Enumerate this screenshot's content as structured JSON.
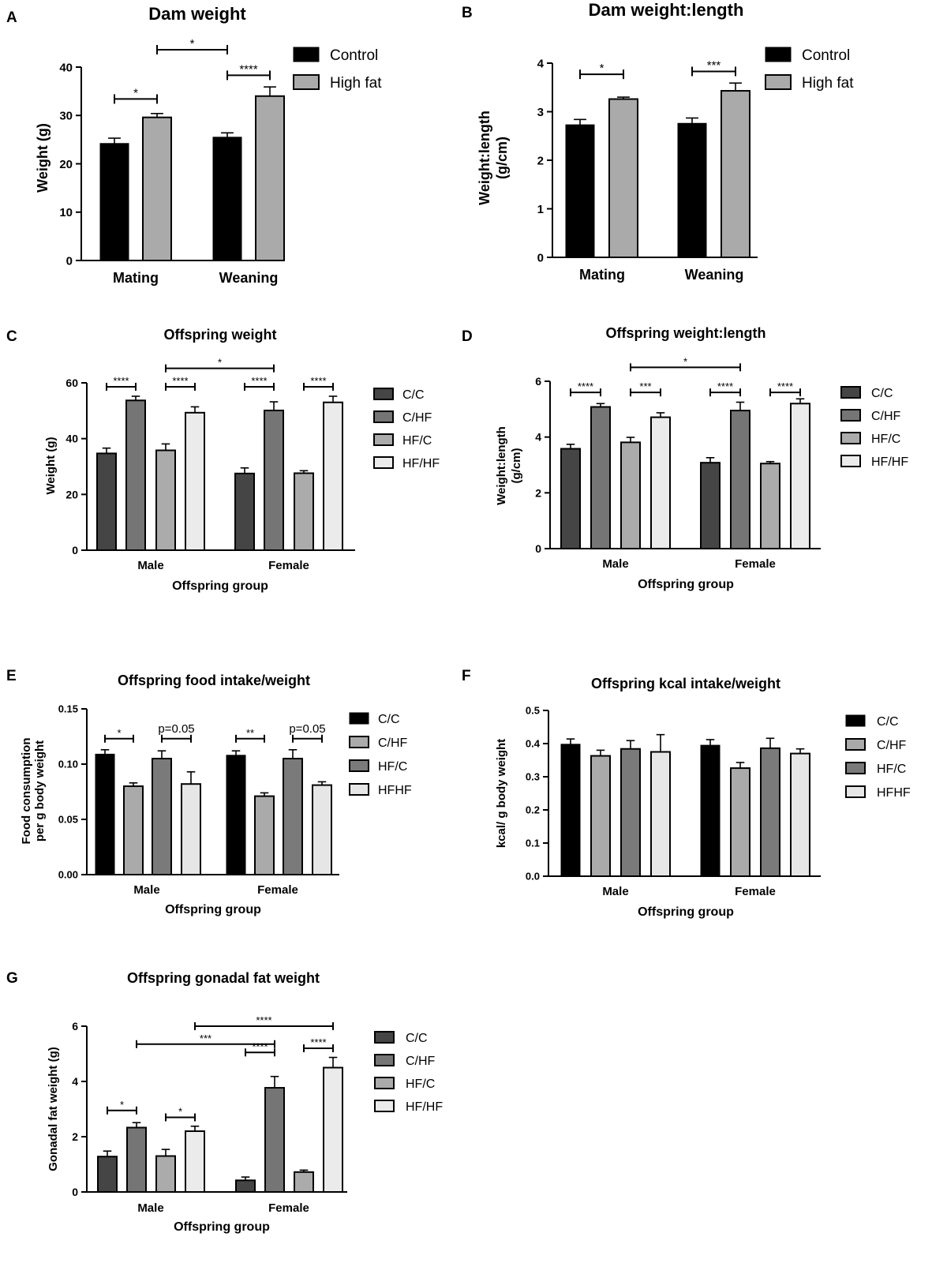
{
  "chart_data": [
    {
      "id": "A",
      "type": "bar",
      "panel_label": "A",
      "title": "Dam weight",
      "ylabel": "Weight (g)",
      "xlabel": "",
      "ylim": [
        0,
        40
      ],
      "yticks": [
        0,
        10,
        20,
        30,
        40
      ],
      "ytick_labels": [
        "0",
        "10",
        "20",
        "30",
        "40"
      ],
      "categories": [
        "Mating",
        "Weaning"
      ],
      "series": [
        {
          "name": "Control",
          "color": "#000000",
          "values": [
            24.2,
            25.5
          ],
          "errors": [
            1.1,
            0.9
          ]
        },
        {
          "name": "High fat",
          "color": "#aaaaaa",
          "values": [
            29.6,
            34.0
          ],
          "errors": [
            0.8,
            1.9
          ]
        }
      ],
      "legend": "top-right",
      "significance": [
        {
          "label": "*",
          "from": [
            0,
            0
          ],
          "to": [
            0,
            1
          ],
          "y": 33.4
        },
        {
          "label": "****",
          "from": [
            1,
            0
          ],
          "to": [
            1,
            1
          ],
          "y": 38.3
        },
        {
          "label": "*",
          "from": [
            0,
            1
          ],
          "to": [
            1,
            0
          ],
          "y": 43.6
        }
      ]
    },
    {
      "id": "B",
      "type": "bar",
      "panel_label": "B",
      "title": "Dam weight:length",
      "ylabel": "Weight:length (g/cm)",
      "xlabel": "",
      "ylim": [
        0,
        4
      ],
      "yticks": [
        0,
        1,
        2,
        3,
        4
      ],
      "ytick_labels": [
        "0",
        "1",
        "2",
        "3",
        "4"
      ],
      "categories": [
        "Mating",
        "Weaning"
      ],
      "series": [
        {
          "name": "Control",
          "color": "#000000",
          "values": [
            2.73,
            2.76
          ],
          "errors": [
            0.11,
            0.11
          ]
        },
        {
          "name": "High fat",
          "color": "#aaaaaa",
          "values": [
            3.26,
            3.43
          ],
          "errors": [
            0.04,
            0.16
          ]
        }
      ],
      "legend": "top-right",
      "significance": [
        {
          "label": "*",
          "from": [
            0,
            0
          ],
          "to": [
            0,
            1
          ],
          "y": 3.77
        },
        {
          "label": "***",
          "from": [
            1,
            0
          ],
          "to": [
            1,
            1
          ],
          "y": 3.83
        }
      ]
    },
    {
      "id": "C",
      "type": "bar",
      "panel_label": "C",
      "title": "Offspring weight",
      "ylabel": "Weight (g)",
      "xlabel": "Offspring group",
      "ylim": [
        0,
        60
      ],
      "yticks": [
        0,
        20,
        40,
        60
      ],
      "ytick_labels": [
        "0",
        "20",
        "40",
        "60"
      ],
      "categories": [
        "Male",
        "Female"
      ],
      "series": [
        {
          "name": "C/C",
          "color": "#454545",
          "values": [
            34.7,
            27.5
          ],
          "errors": [
            1.9,
            2.0
          ]
        },
        {
          "name": "C/HF",
          "color": "#757575",
          "values": [
            53.7,
            50.1
          ],
          "errors": [
            1.5,
            3.1
          ]
        },
        {
          "name": "HF/C",
          "color": "#ababab",
          "values": [
            35.8,
            27.6
          ],
          "errors": [
            2.3,
            0.9
          ]
        },
        {
          "name": "HF/HF",
          "color": "#ebebeb",
          "values": [
            49.3,
            53.0
          ],
          "errors": [
            2.1,
            2.2
          ]
        }
      ],
      "legend": "right",
      "significance": [
        {
          "label": "****",
          "from": [
            0,
            0
          ],
          "to": [
            0,
            1
          ],
          "y": 58.6
        },
        {
          "label": "****",
          "from": [
            0,
            2
          ],
          "to": [
            0,
            3
          ],
          "y": 58.6
        },
        {
          "label": "****",
          "from": [
            1,
            0
          ],
          "to": [
            1,
            1
          ],
          "y": 58.6
        },
        {
          "label": "****",
          "from": [
            1,
            2
          ],
          "to": [
            1,
            3
          ],
          "y": 58.6
        },
        {
          "label": "*",
          "from": [
            0,
            2
          ],
          "to": [
            1,
            1
          ],
          "y": 65.2
        }
      ]
    },
    {
      "id": "D",
      "type": "bar",
      "panel_label": "D",
      "title": "Offspring weight:length",
      "ylabel": "Weight:length (g/cm)",
      "xlabel": "Offspring group",
      "ylim": [
        0,
        6
      ],
      "yticks": [
        0,
        2,
        4,
        6
      ],
      "ytick_labels": [
        "0",
        "2",
        "4",
        "6"
      ],
      "categories": [
        "Male",
        "Female"
      ],
      "series": [
        {
          "name": "C/C",
          "color": "#454545",
          "values": [
            3.58,
            3.08
          ],
          "errors": [
            0.16,
            0.18
          ]
        },
        {
          "name": "C/HF",
          "color": "#757575",
          "values": [
            5.08,
            4.95
          ],
          "errors": [
            0.12,
            0.3
          ]
        },
        {
          "name": "HF/C",
          "color": "#ababab",
          "values": [
            3.81,
            3.05
          ],
          "errors": [
            0.18,
            0.07
          ]
        },
        {
          "name": "HF/HF",
          "color": "#ebebeb",
          "values": [
            4.71,
            5.2
          ],
          "errors": [
            0.16,
            0.17
          ]
        }
      ],
      "legend": "right",
      "significance": [
        {
          "label": "****",
          "from": [
            0,
            0
          ],
          "to": [
            0,
            1
          ],
          "y": 5.6
        },
        {
          "label": "***",
          "from": [
            0,
            2
          ],
          "to": [
            0,
            3
          ],
          "y": 5.6
        },
        {
          "label": "****",
          "from": [
            1,
            0
          ],
          "to": [
            1,
            1
          ],
          "y": 5.6
        },
        {
          "label": "****",
          "from": [
            1,
            2
          ],
          "to": [
            1,
            3
          ],
          "y": 5.6
        },
        {
          "label": "*",
          "from": [
            0,
            2
          ],
          "to": [
            1,
            1
          ],
          "y": 6.5
        }
      ]
    },
    {
      "id": "E",
      "type": "bar",
      "panel_label": "E",
      "title": "Offspring food intake/weight",
      "ylabel": "Food consumption per g body weight",
      "ylabel_lines": [
        "Food consumption",
        "per g body weight"
      ],
      "xlabel": "Offspring group",
      "ylim": [
        0,
        0.15
      ],
      "yticks": [
        0,
        0.05,
        0.1,
        0.15
      ],
      "ytick_labels": [
        "0.00",
        "0.05",
        "0.10",
        "0.15"
      ],
      "categories": [
        "Male",
        "Female"
      ],
      "series": [
        {
          "name": "C/C",
          "color": "#000000",
          "values": [
            0.109,
            0.108
          ],
          "errors": [
            0.004,
            0.004
          ]
        },
        {
          "name": "C/HF",
          "color": "#aaaaaa",
          "values": [
            0.08,
            0.071
          ],
          "errors": [
            0.003,
            0.003
          ]
        },
        {
          "name": "HF/C",
          "color": "#7a7a7a",
          "values": [
            0.105,
            0.105
          ],
          "errors": [
            0.007,
            0.008
          ]
        },
        {
          "name": "HFHF",
          "color": "#e6e6e6",
          "values": [
            0.082,
            0.081
          ],
          "errors": [
            0.011,
            0.003
          ]
        }
      ],
      "legend": "right",
      "significance": [
        {
          "label": "*",
          "from": [
            0,
            0
          ],
          "to": [
            0,
            1
          ],
          "y": 0.123
        },
        {
          "label": "p=0.05",
          "from": [
            0,
            2
          ],
          "to": [
            0,
            3
          ],
          "y": 0.123
        },
        {
          "label": "**",
          "from": [
            1,
            0
          ],
          "to": [
            1,
            1
          ],
          "y": 0.123
        },
        {
          "label": "p=0.05",
          "from": [
            1,
            2
          ],
          "to": [
            1,
            3
          ],
          "y": 0.123
        }
      ]
    },
    {
      "id": "F",
      "type": "bar",
      "panel_label": "F",
      "title": "Offspring kcal intake/weight",
      "ylabel": "kcal/ g body weight",
      "xlabel": "Offspring group",
      "ylim": [
        0,
        0.5
      ],
      "yticks": [
        0,
        0.1,
        0.2,
        0.3,
        0.4,
        0.5
      ],
      "ytick_labels": [
        "0.0",
        "0.1",
        "0.2",
        "0.3",
        "0.4",
        "0.5"
      ],
      "categories": [
        "Male",
        "Female"
      ],
      "series": [
        {
          "name": "C/C",
          "color": "#000000",
          "values": [
            0.398,
            0.395
          ],
          "errors": [
            0.016,
            0.017
          ]
        },
        {
          "name": "C/HF",
          "color": "#aaaaaa",
          "values": [
            0.363,
            0.326
          ],
          "errors": [
            0.017,
            0.017
          ]
        },
        {
          "name": "HF/C",
          "color": "#7a7a7a",
          "values": [
            0.384,
            0.386
          ],
          "errors": [
            0.025,
            0.03
          ]
        },
        {
          "name": "HFHF",
          "color": "#e6e6e6",
          "values": [
            0.375,
            0.37
          ],
          "errors": [
            0.052,
            0.014
          ]
        }
      ],
      "legend": "right",
      "significance": []
    },
    {
      "id": "G",
      "type": "bar",
      "panel_label": "G",
      "title": "Offspring gonadal fat weight",
      "ylabel": "Gonadal fat weight (g)",
      "xlabel": "Offspring group",
      "ylim": [
        0,
        6
      ],
      "yticks": [
        0,
        2,
        4,
        6
      ],
      "ytick_labels": [
        "0",
        "2",
        "4",
        "6"
      ],
      "categories": [
        "Male",
        "Female"
      ],
      "series": [
        {
          "name": "C/C",
          "color": "#454545",
          "values": [
            1.28,
            0.42
          ],
          "errors": [
            0.2,
            0.12
          ]
        },
        {
          "name": "C/HF",
          "color": "#757575",
          "values": [
            2.33,
            3.77
          ],
          "errors": [
            0.18,
            0.41
          ]
        },
        {
          "name": "HF/C",
          "color": "#ababab",
          "values": [
            1.3,
            0.72
          ],
          "errors": [
            0.24,
            0.07
          ]
        },
        {
          "name": "HF/HF",
          "color": "#ebebeb",
          "values": [
            2.2,
            4.5
          ],
          "errors": [
            0.18,
            0.37
          ]
        }
      ],
      "legend": "right",
      "significance": [
        {
          "label": "*",
          "from": [
            0,
            0
          ],
          "to": [
            0,
            1
          ],
          "y": 2.95
        },
        {
          "label": "*",
          "from": [
            0,
            2
          ],
          "to": [
            0,
            3
          ],
          "y": 2.7
        },
        {
          "label": "****",
          "from": [
            1,
            0
          ],
          "to": [
            1,
            1
          ],
          "y": 5.05
        },
        {
          "label": "****",
          "from": [
            1,
            2
          ],
          "to": [
            1,
            3
          ],
          "y": 5.2
        },
        {
          "label": "***",
          "from": [
            0,
            1
          ],
          "to": [
            1,
            1
          ],
          "y": 5.35
        },
        {
          "label": "****",
          "from": [
            0,
            3
          ],
          "to": [
            1,
            3
          ],
          "y": 6.0
        }
      ]
    }
  ]
}
